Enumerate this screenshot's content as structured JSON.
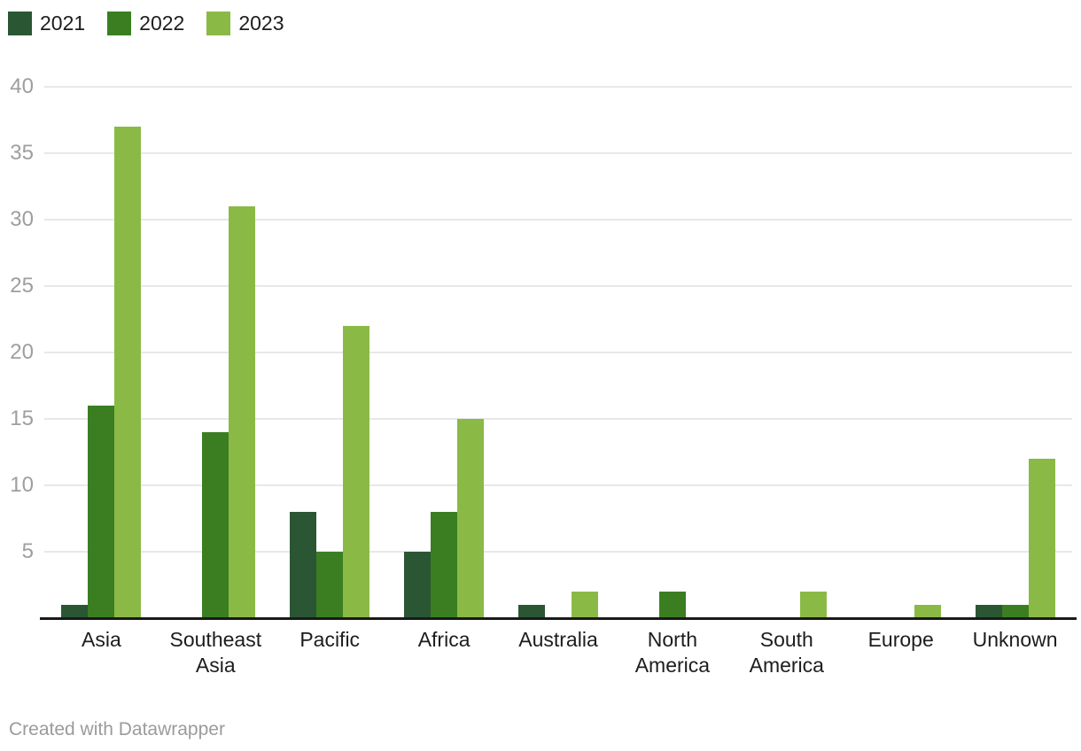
{
  "chart_data": {
    "type": "bar",
    "title": "",
    "subtitle": "",
    "xlabel": "",
    "ylabel": "",
    "categories": [
      "Asia",
      "Southeast Asia",
      "Pacific",
      "Africa",
      "Australia",
      "North America",
      "South America",
      "Europe",
      "Unknown"
    ],
    "series": [
      {
        "name": "2021",
        "color": "#2a5634",
        "values": [
          1,
          0,
          8,
          5,
          1,
          0,
          0,
          0,
          1
        ]
      },
      {
        "name": "2022",
        "color": "#3b7e22",
        "values": [
          16,
          14,
          5,
          8,
          0,
          2,
          0,
          0,
          1
        ]
      },
      {
        "name": "2023",
        "color": "#8aba45",
        "values": [
          37,
          31,
          22,
          15,
          2,
          0,
          2,
          1,
          12
        ]
      }
    ],
    "ylim": [
      0,
      40
    ],
    "yticks": [
      5,
      10,
      15,
      20,
      25,
      30,
      35,
      40
    ],
    "grid": true,
    "legend_position": "top-left",
    "grid_color": "#e8e8e8",
    "baseline_color": "#191919",
    "tick_text_color": "#9e9e9e",
    "category_text_color": "#1d1d1d"
  },
  "footer": {
    "credit": "Created with Datawrapper"
  }
}
